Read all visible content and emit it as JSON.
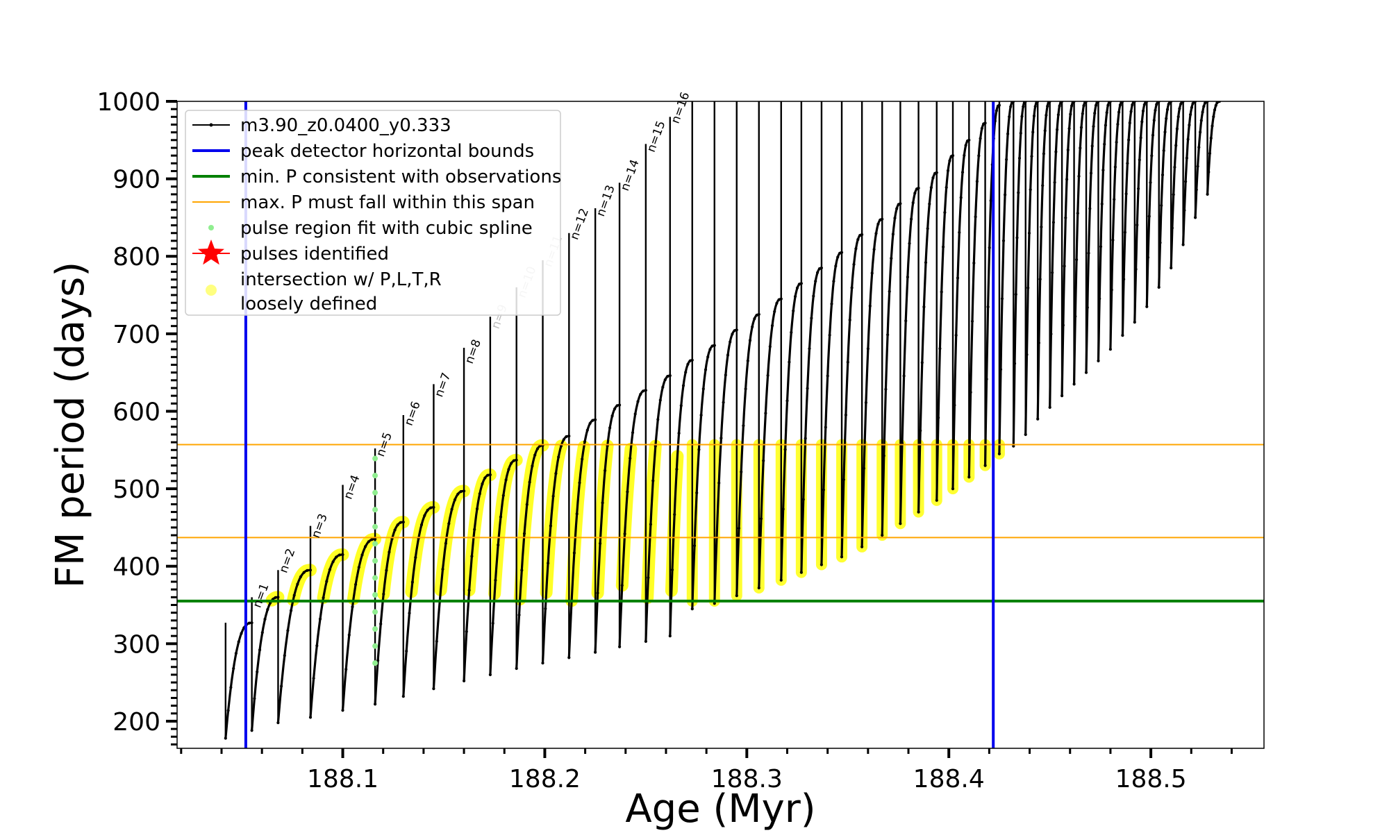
{
  "chart_data": {
    "type": "line",
    "xlabel": "Age (Myr)",
    "ylabel": "FM period (days)",
    "xlim": [
      188.018,
      188.556
    ],
    "ylim": [
      165,
      1000
    ],
    "x_ticks": [
      {
        "value": 188.1,
        "label": "188.1"
      },
      {
        "value": 188.2,
        "label": "188.2"
      },
      {
        "value": 188.3,
        "label": "188.3"
      },
      {
        "value": 188.4,
        "label": "188.4"
      },
      {
        "value": 188.5,
        "label": "188.5"
      }
    ],
    "y_ticks": [
      {
        "value": 200,
        "label": "200"
      },
      {
        "value": 300,
        "label": "300"
      },
      {
        "value": 400,
        "label": "400"
      },
      {
        "value": 500,
        "label": "500"
      },
      {
        "value": 600,
        "label": "600"
      },
      {
        "value": 700,
        "label": "700"
      },
      {
        "value": 800,
        "label": "800"
      },
      {
        "value": 900,
        "label": "900"
      },
      {
        "value": 1000,
        "label": "1000"
      }
    ],
    "grid": false,
    "legend": {
      "placement": "top-left",
      "entries": [
        {
          "label": "m3.90_z0.0400_y0.333",
          "marker": "line-dot",
          "color": "#000000"
        },
        {
          "label": "peak detector horizontal bounds",
          "marker": "line",
          "color": "#0000ee"
        },
        {
          "label": "min. P consistent with observations",
          "marker": "line",
          "color": "#008000"
        },
        {
          "label": "max. P must fall within this span",
          "marker": "line",
          "color": "#ffa500"
        },
        {
          "label": "pulse region fit with cubic spline",
          "marker": "dot",
          "color": "#90ee90"
        },
        {
          "label": "pulses identified",
          "marker": "star",
          "color": "#ff0000"
        },
        {
          "label": "intersection w/ P,L,T,R",
          "label2": "loosely defined",
          "marker": "circle",
          "color": "#ffff80"
        }
      ]
    },
    "reference_lines": {
      "peak_detector_bounds_x": [
        188.052,
        188.422
      ],
      "min_period": 355,
      "max_period_span": [
        437,
        557
      ]
    },
    "colors": {
      "track": "#000000",
      "bounds": "#0000ee",
      "min_p": "#008000",
      "max_p": "#ffa500",
      "spline": "#90ee90",
      "intersection": "#ffff00"
    },
    "pulses": [
      {
        "label": "",
        "x": 188.042,
        "min": 178,
        "peak": 327,
        "spike": 327,
        "hi": 360,
        "cross": null,
        "yellow_arc": true,
        "spline": false
      },
      {
        "label": "n=1",
        "x": 188.055,
        "min": 188,
        "peak": 360,
        "spike": 360,
        "hi": 360,
        "cross": 340,
        "yellow_arc": true,
        "spline": false,
        "faint": false
      },
      {
        "label": "n=2",
        "x": 188.068,
        "min": 198,
        "peak": 395,
        "spike": 395,
        "hi": 395,
        "cross": 385,
        "yellow_arc": true,
        "spline": false,
        "faint": false
      },
      {
        "label": "n=3",
        "x": 188.084,
        "min": 205,
        "peak": 415,
        "spike": 452,
        "hi": 452,
        "cross": 430,
        "yellow_arc": true,
        "spline": false,
        "faint": false
      },
      {
        "label": "n=4",
        "x": 188.1,
        "min": 214,
        "peak": 435,
        "spike": 505,
        "hi": 505,
        "cross": 480,
        "yellow_arc": true,
        "spline": false,
        "faint": false
      },
      {
        "label": "n=5",
        "x": 188.116,
        "min": 222,
        "peak": 457,
        "spike": 552,
        "hi": 552,
        "cross": 535,
        "yellow_arc": true,
        "spline": true,
        "faint": false
      },
      {
        "label": "n=6",
        "x": 188.13,
        "min": 232,
        "peak": 476,
        "spike": 595,
        "hi": 557,
        "cross": 575,
        "yellow_arc": true,
        "spline": false,
        "faint": false
      },
      {
        "label": "n=7",
        "x": 188.145,
        "min": 242,
        "peak": 497,
        "spike": 635,
        "hi": 557,
        "cross": 612,
        "yellow_arc": true,
        "spline": false,
        "faint": false
      },
      {
        "label": "n=8",
        "x": 188.16,
        "min": 252,
        "peak": 518,
        "spike": 682,
        "hi": 557,
        "cross": 655,
        "yellow_arc": true,
        "spline": false,
        "faint": false
      },
      {
        "label": "n=9",
        "x": 188.173,
        "min": 260,
        "peak": 537,
        "spike": 722,
        "hi": 557,
        "cross": 700,
        "yellow_arc": true,
        "spline": false,
        "faint": true
      },
      {
        "label": "n=10",
        "x": 188.186,
        "min": 268,
        "peak": 556,
        "spike": 760,
        "hi": 557,
        "cross": 740,
        "yellow_arc": true,
        "spline": false,
        "faint": true
      },
      {
        "label": "n=11",
        "x": 188.199,
        "min": 275,
        "peak": 568,
        "spike": 795,
        "hi": 557,
        "cross": 780,
        "yellow_arc": true,
        "spline": false,
        "faint": true
      },
      {
        "label": "n=12",
        "x": 188.212,
        "min": 282,
        "peak": 589,
        "spike": 830,
        "hi": 557,
        "cross": 815,
        "yellow_arc": true,
        "spline": false,
        "faint": false
      },
      {
        "label": "n=13",
        "x": 188.225,
        "min": 289,
        "peak": 608,
        "spike": 862,
        "hi": 557,
        "cross": 845,
        "yellow_arc": true,
        "spline": false,
        "faint": false
      },
      {
        "label": "n=14",
        "x": 188.237,
        "min": 296,
        "peak": 627,
        "spike": 895,
        "hi": 557,
        "cross": 878,
        "yellow_arc": true,
        "spline": false,
        "faint": false
      },
      {
        "label": "n=15",
        "x": 188.25,
        "min": 303,
        "peak": 646,
        "spike": 945,
        "hi": 557,
        "cross": 928,
        "yellow_arc": true,
        "spline": false,
        "faint": false
      },
      {
        "label": "n=16",
        "x": 188.262,
        "min": 310,
        "peak": 666,
        "spike": 980,
        "hi": 557,
        "cross": 965,
        "yellow_arc": true,
        "spline": false,
        "faint": false
      },
      {
        "label": "",
        "x": 188.273,
        "min": 345,
        "peak": 685,
        "spike": 1000,
        "hi": 557,
        "cross": null,
        "yellow_arc": false,
        "spline": false
      },
      {
        "label": "",
        "x": 188.284,
        "min": 352,
        "peak": 705,
        "spike": 1000,
        "hi": 557,
        "cross": null,
        "yellow_arc": false,
        "spline": false
      },
      {
        "label": "",
        "x": 188.295,
        "min": 362,
        "peak": 725,
        "spike": 1000,
        "hi": 557,
        "cross": null,
        "yellow_arc": false,
        "spline": false
      },
      {
        "label": "",
        "x": 188.306,
        "min": 372,
        "peak": 745,
        "spike": 1000,
        "hi": 557,
        "cross": null,
        "yellow_arc": false,
        "spline": false
      },
      {
        "label": "",
        "x": 188.317,
        "min": 382,
        "peak": 765,
        "spike": 1000,
        "hi": 557,
        "cross": null,
        "yellow_arc": false,
        "spline": false
      },
      {
        "label": "",
        "x": 188.327,
        "min": 392,
        "peak": 785,
        "spike": 1000,
        "hi": 557,
        "cross": null,
        "yellow_arc": false,
        "spline": false
      },
      {
        "label": "",
        "x": 188.337,
        "min": 402,
        "peak": 805,
        "spike": 1000,
        "hi": 557,
        "cross": null,
        "yellow_arc": false,
        "spline": false
      },
      {
        "label": "",
        "x": 188.347,
        "min": 412,
        "peak": 828,
        "spike": 1000,
        "hi": 557,
        "cross": null,
        "yellow_arc": false,
        "spline": false
      },
      {
        "label": "",
        "x": 188.357,
        "min": 425,
        "peak": 848,
        "spike": 1000,
        "hi": 557,
        "cross": null,
        "yellow_arc": false,
        "spline": false
      },
      {
        "label": "",
        "x": 188.367,
        "min": 440,
        "peak": 868,
        "spike": 1000,
        "hi": 557,
        "cross": null,
        "yellow_arc": false,
        "spline": false
      },
      {
        "label": "",
        "x": 188.376,
        "min": 455,
        "peak": 888,
        "spike": 1000,
        "hi": 557,
        "cross": null,
        "yellow_arc": false,
        "spline": false
      },
      {
        "label": "",
        "x": 188.385,
        "min": 470,
        "peak": 908,
        "spike": 1000,
        "hi": 557,
        "cross": null,
        "yellow_arc": false,
        "spline": false
      },
      {
        "label": "",
        "x": 188.394,
        "min": 485,
        "peak": 930,
        "spike": 1000,
        "hi": 557,
        "cross": null,
        "yellow_arc": false,
        "spline": false
      },
      {
        "label": "",
        "x": 188.402,
        "min": 500,
        "peak": 950,
        "spike": 1000,
        "hi": 557,
        "cross": null,
        "yellow_arc": false,
        "spline": false
      },
      {
        "label": "",
        "x": 188.41,
        "min": 515,
        "peak": 972,
        "spike": 1000,
        "hi": 557,
        "cross": null,
        "yellow_arc": false,
        "spline": false
      },
      {
        "label": "",
        "x": 188.418,
        "min": 530,
        "peak": 995,
        "spike": 1000,
        "hi": 557,
        "cross": null,
        "yellow_arc": false,
        "spline": false
      },
      {
        "label": "",
        "x": 188.425,
        "min": 545,
        "peak": 1000,
        "spike": 1000,
        "hi": 557,
        "cross": null,
        "yellow_arc": false,
        "spline": false
      },
      {
        "label": "",
        "x": 188.432,
        "min": 555,
        "peak": 1000,
        "spike": 1000,
        "hi": null,
        "cross": null,
        "yellow_arc": false,
        "spline": false
      },
      {
        "label": "",
        "x": 188.438,
        "min": 570,
        "peak": 1000,
        "spike": 1000,
        "hi": null,
        "cross": null,
        "yellow_arc": false,
        "spline": false
      },
      {
        "label": "",
        "x": 188.444,
        "min": 590,
        "peak": 1000,
        "spike": 1000,
        "hi": null,
        "cross": null,
        "yellow_arc": false,
        "spline": false
      },
      {
        "label": "",
        "x": 188.45,
        "min": 605,
        "peak": 1000,
        "spike": 1000,
        "hi": null,
        "cross": null,
        "yellow_arc": false,
        "spline": false
      },
      {
        "label": "",
        "x": 188.456,
        "min": 620,
        "peak": 1000,
        "spike": 1000,
        "hi": null,
        "cross": null,
        "yellow_arc": false,
        "spline": false
      },
      {
        "label": "",
        "x": 188.462,
        "min": 635,
        "peak": 1000,
        "spike": 1000,
        "hi": null,
        "cross": null,
        "yellow_arc": false,
        "spline": false
      },
      {
        "label": "",
        "x": 188.468,
        "min": 650,
        "peak": 1000,
        "spike": 1000,
        "hi": null,
        "cross": null,
        "yellow_arc": false,
        "spline": false
      },
      {
        "label": "",
        "x": 188.474,
        "min": 665,
        "peak": 1000,
        "spike": 1000,
        "hi": null,
        "cross": null,
        "yellow_arc": false,
        "spline": false
      },
      {
        "label": "",
        "x": 188.48,
        "min": 680,
        "peak": 1000,
        "spike": 1000,
        "hi": null,
        "cross": null,
        "yellow_arc": false,
        "spline": false
      },
      {
        "label": "",
        "x": 188.486,
        "min": 698,
        "peak": 1000,
        "spike": 1000,
        "hi": null,
        "cross": null,
        "yellow_arc": false,
        "spline": false
      },
      {
        "label": "",
        "x": 188.492,
        "min": 715,
        "peak": 1000,
        "spike": 1000,
        "hi": null,
        "cross": null,
        "yellow_arc": false,
        "spline": false
      },
      {
        "label": "",
        "x": 188.498,
        "min": 735,
        "peak": 1000,
        "spike": 1000,
        "hi": null,
        "cross": null,
        "yellow_arc": false,
        "spline": false
      },
      {
        "label": "",
        "x": 188.504,
        "min": 760,
        "peak": 1000,
        "spike": 1000,
        "hi": null,
        "cross": null,
        "yellow_arc": false,
        "spline": false
      },
      {
        "label": "",
        "x": 188.51,
        "min": 785,
        "peak": 1000,
        "spike": 1000,
        "hi": null,
        "cross": null,
        "yellow_arc": false,
        "spline": false
      },
      {
        "label": "",
        "x": 188.516,
        "min": 815,
        "peak": 1000,
        "spike": 1000,
        "hi": null,
        "cross": null,
        "yellow_arc": false,
        "spline": false
      },
      {
        "label": "",
        "x": 188.522,
        "min": 850,
        "peak": 1000,
        "spike": 1000,
        "hi": null,
        "cross": null,
        "yellow_arc": false,
        "spline": false
      },
      {
        "label": "",
        "x": 188.528,
        "min": 880,
        "peak": 1000,
        "spike": 1000,
        "hi": null,
        "cross": null,
        "yellow_arc": false,
        "spline": false
      }
    ]
  }
}
